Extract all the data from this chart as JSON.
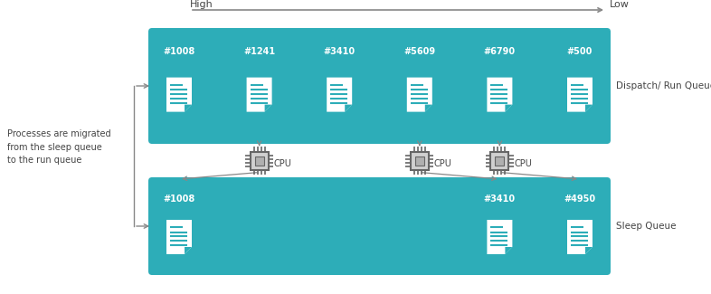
{
  "bg_color": "#ffffff",
  "teal_color": "#2dadb8",
  "white": "#ffffff",
  "gray_text": "#555555",
  "dark_text": "#444444",
  "arrow_color": "#888888",
  "run_queue_label": "Dispatch/ Run Queue",
  "sleep_queue_label": "Sleep Queue",
  "run_queue_processes": [
    "#1008",
    "#1241",
    "#3410",
    "#5609",
    "#6790",
    "#500"
  ],
  "sleep_queue_processes": [
    "#1008",
    "#3410",
    "#4950"
  ],
  "high_label": "High",
  "low_label": "Low",
  "side_text_line1": "Processes are migrated",
  "side_text_line2": "from the sleep queue",
  "side_text_line3": "to the run queue",
  "cpu_label": "CPU",
  "fig_w": 7.86,
  "fig_h": 3.25,
  "dpi": 100
}
